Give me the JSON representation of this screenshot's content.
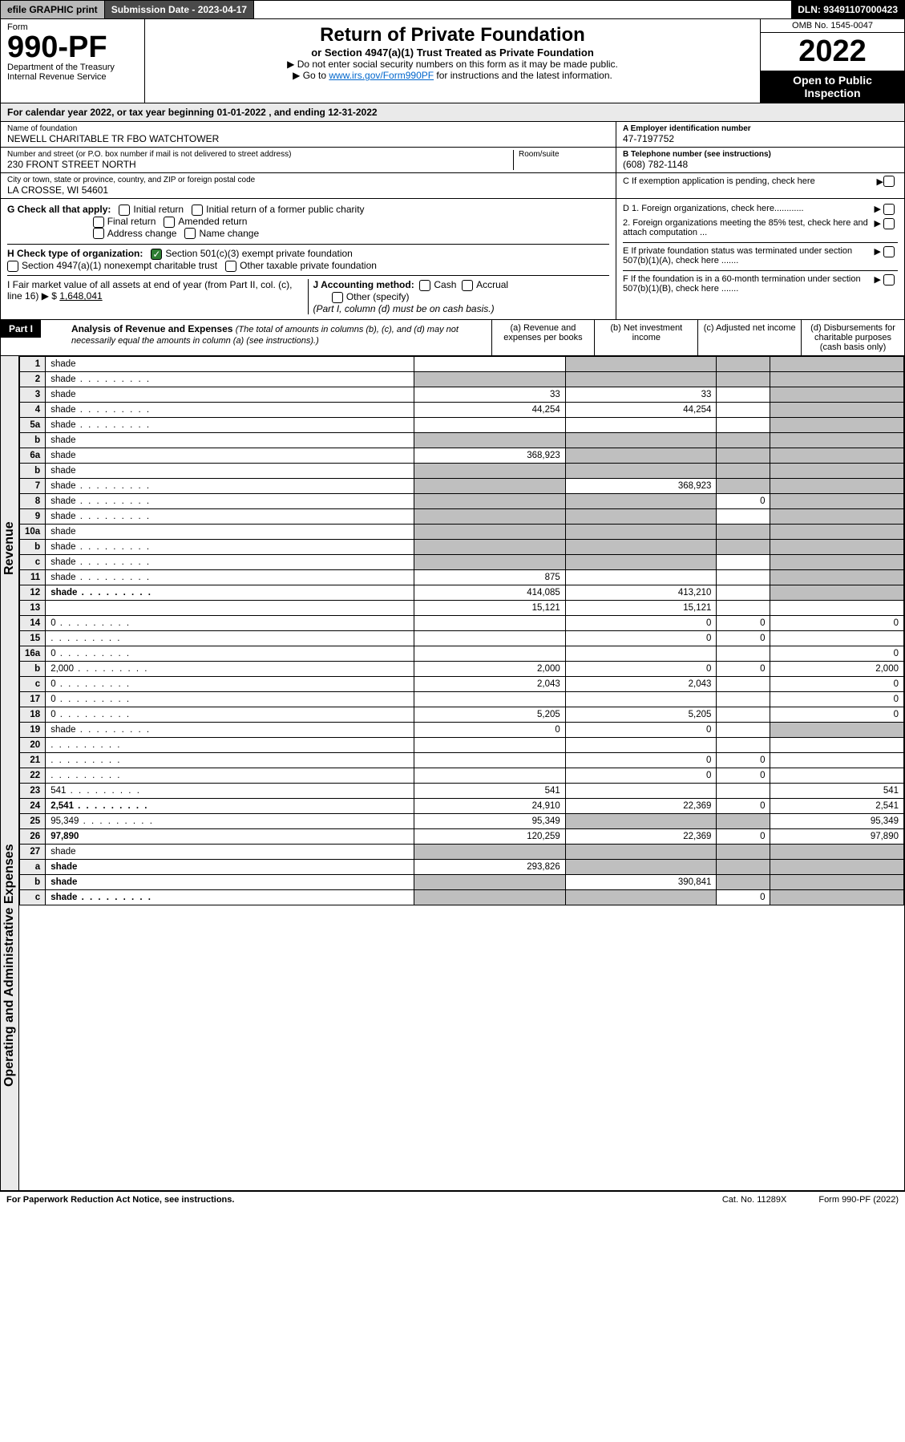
{
  "colors": {
    "black": "#000000",
    "white": "#ffffff",
    "grey_btn": "#b8b8b8",
    "grey_dark": "#4a4a4a",
    "grey_light": "#eaeaea",
    "grey_shade": "#bfbfbf",
    "link": "#0066cc",
    "check_green": "#2e7d32"
  },
  "topbar": {
    "efile": "efile GRAPHIC print",
    "submission": "Submission Date - 2023-04-17",
    "dln": "DLN: 93491107000423"
  },
  "header": {
    "form_label": "Form",
    "form_number": "990-PF",
    "dept1": "Department of the Treasury",
    "dept2": "Internal Revenue Service",
    "title": "Return of Private Foundation",
    "subtitle": "or Section 4947(a)(1) Trust Treated as Private Foundation",
    "note1": "▶ Do not enter social security numbers on this form as it may be made public.",
    "note2_pre": "▶ Go to ",
    "note2_link": "www.irs.gov/Form990PF",
    "note2_post": " for instructions and the latest information.",
    "omb": "OMB No. 1545-0047",
    "year": "2022",
    "inspect": "Open to Public Inspection"
  },
  "cal": {
    "text_pre": "For calendar year 2022, or tax year beginning ",
    "begin": "01-01-2022",
    "mid": " , and ending ",
    "end": "12-31-2022"
  },
  "info": {
    "name_label": "Name of foundation",
    "name": "NEWELL CHARITABLE TR FBO WATCHTOWER",
    "addr_label": "Number and street (or P.O. box number if mail is not delivered to street address)",
    "addr": "230 FRONT STREET NORTH",
    "room_label": "Room/suite",
    "city_label": "City or town, state or province, country, and ZIP or foreign postal code",
    "city": "LA CROSSE, WI  54601",
    "ein_label": "A Employer identification number",
    "ein": "47-7197752",
    "tel_label": "B Telephone number (see instructions)",
    "tel": "(608) 782-1148",
    "c_label": "C If exemption application is pending, check here"
  },
  "checks": {
    "g_label": "G Check all that apply:",
    "g_initial": "Initial return",
    "g_initial_former": "Initial return of a former public charity",
    "g_final": "Final return",
    "g_amended": "Amended return",
    "g_address": "Address change",
    "g_name": "Name change",
    "h_label": "H Check type of organization:",
    "h_501c3": "Section 501(c)(3) exempt private foundation",
    "h_4947": "Section 4947(a)(1) nonexempt charitable trust",
    "h_other_tax": "Other taxable private foundation",
    "i_label": "I Fair market value of all assets at end of year (from Part II, col. (c), line 16) ▶ $",
    "i_value": "1,648,041",
    "j_label": "J Accounting method:",
    "j_cash": "Cash",
    "j_accrual": "Accrual",
    "j_other": "Other (specify)",
    "j_note": "(Part I, column (d) must be on cash basis.)",
    "d1": "D 1. Foreign organizations, check here............",
    "d2": "2. Foreign organizations meeting the 85% test, check here and attach computation ...",
    "e": "E  If private foundation status was terminated under section 507(b)(1)(A), check here .......",
    "f": "F  If the foundation is in a 60-month termination under section 507(b)(1)(B), check here .......",
    "arrow": "▶"
  },
  "part1": {
    "label": "Part I",
    "title": "Analysis of Revenue and Expenses",
    "title_note": "(The total of amounts in columns (b), (c), and (d) may not necessarily equal the amounts in column (a) (see instructions).)",
    "col_a": "(a)   Revenue and expenses per books",
    "col_b": "(b)   Net investment income",
    "col_c": "(c)   Adjusted net income",
    "col_d": "(d)   Disbursements for charitable purposes (cash basis only)"
  },
  "vert": {
    "revenue": "Revenue",
    "expenses": "Operating and Administrative Expenses"
  },
  "rows": [
    {
      "n": "1",
      "d": "shade",
      "a": "",
      "b": "shade",
      "c": "shade"
    },
    {
      "n": "2",
      "d": "shade",
      "dots": true,
      "a": "shade",
      "b": "shade",
      "c": "shade"
    },
    {
      "n": "3",
      "d": "shade",
      "a": "33",
      "b": "33",
      "c": ""
    },
    {
      "n": "4",
      "d": "shade",
      "dots": true,
      "a": "44,254",
      "b": "44,254",
      "c": ""
    },
    {
      "n": "5a",
      "d": "shade",
      "dots": true,
      "a": "",
      "b": "",
      "c": ""
    },
    {
      "n": "b",
      "d": "shade",
      "a": "shade",
      "b": "shade",
      "c": "shade"
    },
    {
      "n": "6a",
      "d": "shade",
      "a": "368,923",
      "b": "shade",
      "c": "shade"
    },
    {
      "n": "b",
      "d": "shade",
      "a": "shade",
      "b": "shade",
      "c": "shade"
    },
    {
      "n": "7",
      "d": "shade",
      "dots": true,
      "a": "shade",
      "b": "368,923",
      "c": "shade"
    },
    {
      "n": "8",
      "d": "shade",
      "dots": true,
      "a": "shade",
      "b": "shade",
      "c": "0"
    },
    {
      "n": "9",
      "d": "shade",
      "dots": true,
      "a": "shade",
      "b": "shade",
      "c": ""
    },
    {
      "n": "10a",
      "d": "shade",
      "a": "shade",
      "b": "shade",
      "c": "shade"
    },
    {
      "n": "b",
      "d": "shade",
      "dots": true,
      "a": "shade",
      "b": "shade",
      "c": "shade"
    },
    {
      "n": "c",
      "d": "shade",
      "dots": true,
      "a": "shade",
      "b": "shade",
      "c": ""
    },
    {
      "n": "11",
      "d": "shade",
      "dots": true,
      "a": "875",
      "b": "",
      "c": ""
    },
    {
      "n": "12",
      "d": "shade",
      "dots": true,
      "bold": true,
      "a": "414,085",
      "b": "413,210",
      "c": ""
    },
    {
      "n": "13",
      "d": "",
      "a": "15,121",
      "b": "15,121",
      "c": ""
    },
    {
      "n": "14",
      "d": "0",
      "dots": true,
      "a": "",
      "b": "0",
      "c": "0"
    },
    {
      "n": "15",
      "d": "",
      "dots": true,
      "a": "",
      "b": "0",
      "c": "0"
    },
    {
      "n": "16a",
      "d": "0",
      "dots": true,
      "a": "",
      "b": "",
      "c": ""
    },
    {
      "n": "b",
      "d": "2,000",
      "dots": true,
      "a": "2,000",
      "b": "0",
      "c": "0"
    },
    {
      "n": "c",
      "d": "0",
      "dots": true,
      "a": "2,043",
      "b": "2,043",
      "c": ""
    },
    {
      "n": "17",
      "d": "0",
      "dots": true,
      "a": "",
      "b": "",
      "c": ""
    },
    {
      "n": "18",
      "d": "0",
      "dots": true,
      "a": "5,205",
      "b": "5,205",
      "c": ""
    },
    {
      "n": "19",
      "d": "shade",
      "dots": true,
      "a": "0",
      "b": "0",
      "c": ""
    },
    {
      "n": "20",
      "d": "",
      "dots": true,
      "a": "",
      "b": "",
      "c": ""
    },
    {
      "n": "21",
      "d": "",
      "dots": true,
      "a": "",
      "b": "0",
      "c": "0"
    },
    {
      "n": "22",
      "d": "",
      "dots": true,
      "a": "",
      "b": "0",
      "c": "0"
    },
    {
      "n": "23",
      "d": "541",
      "dots": true,
      "a": "541",
      "b": "",
      "c": ""
    },
    {
      "n": "24",
      "d": "2,541",
      "dots": true,
      "bold": true,
      "a": "24,910",
      "b": "22,369",
      "c": "0"
    },
    {
      "n": "25",
      "d": "95,349",
      "dots": true,
      "a": "95,349",
      "b": "shade",
      "c": "shade"
    },
    {
      "n": "26",
      "d": "97,890",
      "bold": true,
      "a": "120,259",
      "b": "22,369",
      "c": "0"
    },
    {
      "n": "27",
      "d": "shade",
      "a": "shade",
      "b": "shade",
      "c": "shade"
    },
    {
      "n": "a",
      "d": "shade",
      "bold": true,
      "a": "293,826",
      "b": "shade",
      "c": "shade"
    },
    {
      "n": "b",
      "d": "shade",
      "bold": true,
      "a": "shade",
      "b": "390,841",
      "c": "shade"
    },
    {
      "n": "c",
      "d": "shade",
      "dots": true,
      "bold": true,
      "a": "shade",
      "b": "shade",
      "c": "0"
    }
  ],
  "footer": {
    "left": "For Paperwork Reduction Act Notice, see instructions.",
    "center": "Cat. No. 11289X",
    "right": "Form 990-PF (2022)"
  }
}
